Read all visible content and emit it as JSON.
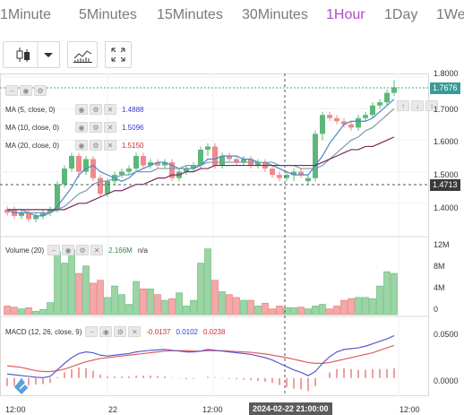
{
  "tabs": [
    {
      "label": "1Minute",
      "active": false
    },
    {
      "label": "5Minutes",
      "active": false
    },
    {
      "label": "15Minutes",
      "active": false
    },
    {
      "label": "30Minutes",
      "active": false
    },
    {
      "label": "1Hour",
      "active": true
    },
    {
      "label": "1Day",
      "active": false
    },
    {
      "label": "1We",
      "active": false
    }
  ],
  "toolbar": {
    "chart_type_icon": "candlestick-icon",
    "dropdown_icon": "chevron-down-icon",
    "indicators_icon": "indicators-icon",
    "fullscreen_icon": "fullscreen-icon"
  },
  "legend": {
    "ma5": {
      "label": "MA (5, close, 0)",
      "value": "1.4888"
    },
    "ma10": {
      "label": "MA (10, close, 0)",
      "value": "1.5096"
    },
    "ma20": {
      "label": "MA (20, close, 0)",
      "value": "1.5150"
    },
    "volume": {
      "label": "Volume (20)",
      "value": "2.166M",
      "extra": "n/a"
    },
    "macd": {
      "label": "MACD (12, 26, close, 9)",
      "v1": "-0.0137",
      "v2": "0.0102",
      "v3": "0.0238"
    }
  },
  "price_axis": [
    "1.8000",
    "1.7000",
    "1.6000",
    "1.5000",
    "1.4000"
  ],
  "price_tags": {
    "last": "1.7676",
    "crosshair": "1.4713"
  },
  "volume_axis": [
    "12M",
    "8M",
    "4M",
    "0"
  ],
  "macd_axis": [
    "0.0500",
    "0.0000"
  ],
  "time_axis": [
    "12:00",
    "22",
    "12:00",
    "12:00"
  ],
  "crosshair_time": "2024-02-22 21:00:00",
  "colors": {
    "up": "#5cb87a",
    "down": "#f08a8a",
    "ma5": "#4a86c8",
    "ma10": "#7a9ab0",
    "ma20": "#7a2a5a",
    "macd": "#5a5ad0",
    "signal": "#e06060",
    "accent": "#b04cc8"
  },
  "chart_data": {
    "type": "candlestick",
    "price_axis_range": [
      1.3,
      1.8
    ],
    "candles": [
      [
        1.37,
        1.38,
        1.39,
        1.36,
        "down"
      ],
      [
        1.38,
        1.36,
        1.39,
        1.35,
        "down"
      ],
      [
        1.36,
        1.37,
        1.38,
        1.35,
        "up"
      ],
      [
        1.37,
        1.35,
        1.38,
        1.34,
        "down"
      ],
      [
        1.35,
        1.36,
        1.37,
        1.34,
        "up"
      ],
      [
        1.36,
        1.37,
        1.38,
        1.35,
        "up"
      ],
      [
        1.37,
        1.38,
        1.39,
        1.36,
        "up"
      ],
      [
        1.38,
        1.46,
        1.47,
        1.37,
        "up"
      ],
      [
        1.46,
        1.51,
        1.52,
        1.45,
        "up"
      ],
      [
        1.51,
        1.55,
        1.56,
        1.5,
        "up"
      ],
      [
        1.55,
        1.5,
        1.56,
        1.48,
        "down"
      ],
      [
        1.5,
        1.54,
        1.55,
        1.49,
        "up"
      ],
      [
        1.54,
        1.48,
        1.55,
        1.47,
        "down"
      ],
      [
        1.48,
        1.43,
        1.49,
        1.42,
        "down"
      ],
      [
        1.43,
        1.47,
        1.48,
        1.42,
        "up"
      ],
      [
        1.47,
        1.49,
        1.5,
        1.46,
        "up"
      ],
      [
        1.49,
        1.5,
        1.51,
        1.48,
        "up"
      ],
      [
        1.5,
        1.51,
        1.52,
        1.49,
        "up"
      ],
      [
        1.51,
        1.55,
        1.56,
        1.5,
        "up"
      ],
      [
        1.55,
        1.52,
        1.56,
        1.51,
        "down"
      ],
      [
        1.52,
        1.53,
        1.54,
        1.51,
        "up"
      ],
      [
        1.53,
        1.52,
        1.54,
        1.51,
        "down"
      ],
      [
        1.52,
        1.53,
        1.54,
        1.51,
        "up"
      ],
      [
        1.53,
        1.48,
        1.54,
        1.47,
        "down"
      ],
      [
        1.48,
        1.5,
        1.51,
        1.47,
        "up"
      ],
      [
        1.5,
        1.51,
        1.52,
        1.49,
        "up"
      ],
      [
        1.51,
        1.52,
        1.53,
        1.5,
        "up"
      ],
      [
        1.52,
        1.57,
        1.58,
        1.51,
        "up"
      ],
      [
        1.57,
        1.58,
        1.59,
        1.55,
        "up"
      ],
      [
        1.58,
        1.52,
        1.59,
        1.51,
        "down"
      ],
      [
        1.52,
        1.55,
        1.56,
        1.51,
        "up"
      ],
      [
        1.55,
        1.54,
        1.56,
        1.53,
        "down"
      ],
      [
        1.54,
        1.53,
        1.55,
        1.52,
        "down"
      ],
      [
        1.53,
        1.54,
        1.55,
        1.52,
        "up"
      ],
      [
        1.54,
        1.52,
        1.55,
        1.51,
        "down"
      ],
      [
        1.52,
        1.53,
        1.54,
        1.51,
        "up"
      ],
      [
        1.53,
        1.51,
        1.54,
        1.5,
        "down"
      ],
      [
        1.51,
        1.49,
        1.52,
        1.48,
        "down"
      ],
      [
        1.49,
        1.48,
        1.5,
        1.47,
        "down"
      ],
      [
        1.48,
        1.49,
        1.5,
        1.47,
        "up"
      ],
      [
        1.49,
        1.5,
        1.51,
        1.47,
        "up"
      ],
      [
        1.5,
        1.49,
        1.51,
        1.48,
        "down"
      ],
      [
        1.47,
        1.48,
        1.49,
        1.46,
        "up"
      ],
      [
        1.48,
        1.62,
        1.63,
        1.47,
        "up"
      ],
      [
        1.62,
        1.68,
        1.69,
        1.6,
        "up"
      ],
      [
        1.68,
        1.67,
        1.69,
        1.66,
        "down"
      ],
      [
        1.67,
        1.66,
        1.68,
        1.65,
        "down"
      ],
      [
        1.66,
        1.65,
        1.67,
        1.64,
        "down"
      ],
      [
        1.65,
        1.64,
        1.66,
        1.63,
        "down"
      ],
      [
        1.64,
        1.67,
        1.68,
        1.63,
        "up"
      ],
      [
        1.67,
        1.68,
        1.69,
        1.66,
        "up"
      ],
      [
        1.68,
        1.71,
        1.72,
        1.67,
        "up"
      ],
      [
        1.71,
        1.72,
        1.73,
        1.7,
        "up"
      ],
      [
        1.72,
        1.75,
        1.76,
        1.71,
        "up"
      ],
      [
        1.75,
        1.7676,
        1.79,
        1.74,
        "up"
      ]
    ],
    "ma5": [
      1.38,
      1.37,
      1.37,
      1.37,
      1.36,
      1.36,
      1.37,
      1.39,
      1.42,
      1.45,
      1.49,
      1.51,
      1.52,
      1.5,
      1.49,
      1.48,
      1.47,
      1.48,
      1.5,
      1.51,
      1.52,
      1.53,
      1.53,
      1.52,
      1.51,
      1.51,
      1.51,
      1.52,
      1.54,
      1.54,
      1.55,
      1.55,
      1.55,
      1.54,
      1.54,
      1.53,
      1.53,
      1.52,
      1.51,
      1.5,
      1.49,
      1.49,
      1.49,
      1.52,
      1.55,
      1.59,
      1.62,
      1.65,
      1.66,
      1.66,
      1.66,
      1.67,
      1.69,
      1.71,
      1.73
    ],
    "ma10": [
      1.38,
      1.38,
      1.38,
      1.37,
      1.37,
      1.37,
      1.37,
      1.38,
      1.39,
      1.41,
      1.43,
      1.44,
      1.46,
      1.47,
      1.47,
      1.48,
      1.49,
      1.49,
      1.5,
      1.5,
      1.5,
      1.51,
      1.51,
      1.51,
      1.51,
      1.52,
      1.52,
      1.52,
      1.53,
      1.53,
      1.53,
      1.53,
      1.53,
      1.53,
      1.53,
      1.53,
      1.53,
      1.53,
      1.52,
      1.52,
      1.52,
      1.51,
      1.51,
      1.51,
      1.52,
      1.54,
      1.56,
      1.58,
      1.6,
      1.61,
      1.63,
      1.64,
      1.66,
      1.68,
      1.7
    ],
    "ma20": [
      1.38,
      1.38,
      1.38,
      1.38,
      1.38,
      1.38,
      1.38,
      1.38,
      1.38,
      1.39,
      1.4,
      1.4,
      1.41,
      1.42,
      1.43,
      1.44,
      1.44,
      1.45,
      1.46,
      1.46,
      1.47,
      1.48,
      1.48,
      1.49,
      1.49,
      1.5,
      1.5,
      1.51,
      1.51,
      1.52,
      1.52,
      1.52,
      1.52,
      1.52,
      1.52,
      1.52,
      1.52,
      1.52,
      1.52,
      1.52,
      1.52,
      1.52,
      1.52,
      1.52,
      1.53,
      1.54,
      1.55,
      1.56,
      1.57,
      1.57,
      1.58,
      1.58,
      1.59,
      1.6,
      1.61
    ],
    "volume_axis_range": [
      0,
      13
    ],
    "volume_millions": [
      1.5,
      1.3,
      1.0,
      1.2,
      0.6,
      0.9,
      2.1,
      11.0,
      9.0,
      11.4,
      7.2,
      8.5,
      5.5,
      6.0,
      3.0,
      5.0,
      3.5,
      1.8,
      5.8,
      4.5,
      4.5,
      3.5,
      2.5,
      2.8,
      3.8,
      1.5,
      2.5,
      9.0,
      11.5,
      6.0,
      4.0,
      3.5,
      3.0,
      2.5,
      2.5,
      1.5,
      2.0,
      1.0,
      1.5,
      1.2,
      1.2,
      1.3,
      1.0,
      1.5,
      1.8,
      1.0,
      1.5,
      2.5,
      2.8,
      3.0,
      3.0,
      2.8,
      5.0,
      7.5,
      7.2
    ],
    "macd_axis_range": [
      -0.02,
      0.07
    ],
    "macd": [
      0.005,
      0.004,
      0.003,
      0.002,
      0.001,
      0.0005,
      0.002,
      0.01,
      0.018,
      0.025,
      0.03,
      0.032,
      0.031,
      0.028,
      0.027,
      0.028,
      0.029,
      0.03,
      0.032,
      0.033,
      0.034,
      0.0345,
      0.035,
      0.034,
      0.033,
      0.032,
      0.032,
      0.033,
      0.035,
      0.034,
      0.033,
      0.032,
      0.031,
      0.03,
      0.029,
      0.027,
      0.025,
      0.022,
      0.018,
      0.014,
      0.01,
      0.007,
      0.003,
      0.008,
      0.018,
      0.026,
      0.032,
      0.035,
      0.036,
      0.037,
      0.039,
      0.042,
      0.045,
      0.048,
      0.052
    ],
    "signal": [
      0.015,
      0.014,
      0.013,
      0.011,
      0.009,
      0.008,
      0.008,
      0.009,
      0.011,
      0.014,
      0.017,
      0.02,
      0.022,
      0.024,
      0.025,
      0.026,
      0.027,
      0.028,
      0.029,
      0.03,
      0.031,
      0.032,
      0.033,
      0.0335,
      0.0335,
      0.0335,
      0.033,
      0.033,
      0.0335,
      0.0335,
      0.0335,
      0.033,
      0.0325,
      0.032,
      0.0315,
      0.0305,
      0.0295,
      0.028,
      0.0265,
      0.025,
      0.023,
      0.021,
      0.019,
      0.018,
      0.018,
      0.019,
      0.021,
      0.023,
      0.025,
      0.027,
      0.029,
      0.031,
      0.034,
      0.037,
      0.04
    ],
    "histogram": [
      -0.01,
      -0.01,
      -0.01,
      -0.009,
      -0.008,
      -0.0075,
      -0.006,
      0.001,
      0.007,
      0.011,
      0.013,
      0.012,
      0.009,
      0.004,
      0.002,
      0.002,
      0.002,
      0.002,
      0.003,
      0.003,
      0.003,
      0.0025,
      0.002,
      0.0005,
      -0.0005,
      -0.0015,
      -0.001,
      0.0,
      0.0015,
      0.0005,
      -0.0005,
      -0.001,
      -0.0015,
      -0.002,
      -0.0025,
      -0.0035,
      -0.0045,
      -0.006,
      -0.0085,
      -0.011,
      -0.013,
      -0.014,
      -0.016,
      -0.01,
      0.0,
      0.007,
      0.011,
      0.012,
      0.011,
      0.01,
      0.01,
      0.011,
      0.011,
      0.011,
      0.012
    ]
  }
}
